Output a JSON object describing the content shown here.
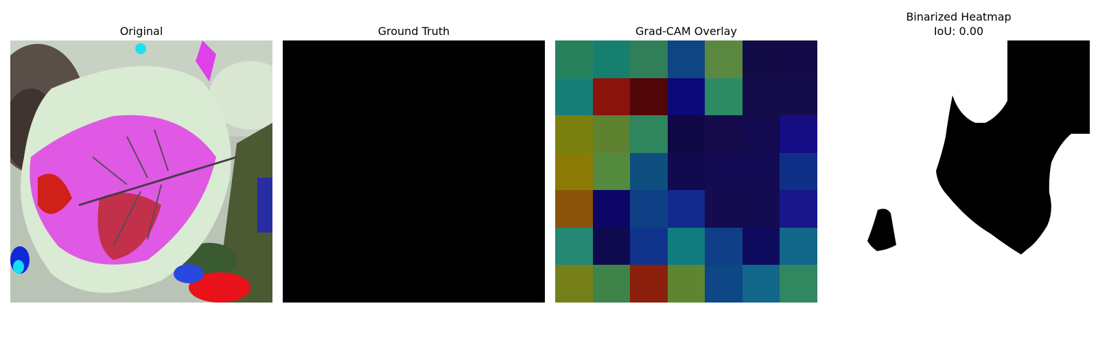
{
  "panels": {
    "original": {
      "title": "Original"
    },
    "ground_truth": {
      "title": "Ground Truth"
    },
    "gradcam": {
      "title": "Grad-CAM Overlay",
      "grid_colors": [
        [
          "#27815d",
          "#16806f",
          "#317f58",
          "#0f4583",
          "#5a8840",
          "#120b45",
          "#140a47"
        ],
        [
          "#168078",
          "#8a140c",
          "#510608",
          "#0c0a79",
          "#2d8a65",
          "#130c48",
          "#150c4a"
        ],
        [
          "#7a800e",
          "#5e8230",
          "#2f865d",
          "#0f0845",
          "#150b4b",
          "#140b50",
          "#140d84"
        ],
        [
          "#8b7b05",
          "#548a3d",
          "#0f4f80",
          "#110a4e",
          "#130b53",
          "#130c55",
          "#0f2f89"
        ],
        [
          "#8a530a",
          "#0d0666",
          "#0f3f84",
          "#12298c",
          "#150b4f",
          "#130c50",
          "#181689"
        ],
        [
          "#238772",
          "#0f0a4d",
          "#10338b",
          "#107c80",
          "#0f3f86",
          "#0f0b5f",
          "#13678a"
        ],
        [
          "#75801b",
          "#3e8348",
          "#8a1f0c",
          "#5f8530",
          "#0f4686",
          "#12678a",
          "#308760"
        ]
      ]
    },
    "binarized": {
      "title": "Binarized Heatmap",
      "iou": "IoU: 0.00"
    }
  }
}
